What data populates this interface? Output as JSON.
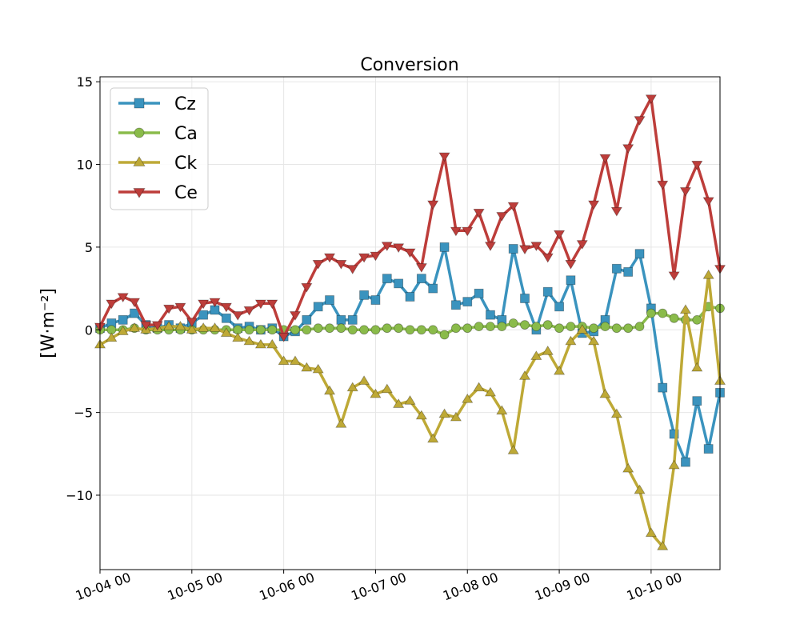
{
  "chart_data": {
    "type": "line",
    "title": "Conversion",
    "xlabel": "",
    "ylabel": "[W·m⁻²]",
    "xlim": [
      "2024-10-04 00:00",
      "2024-10-10 18:00"
    ],
    "ylim": [
      -14.5,
      15.3
    ],
    "x_ticks": [
      "10-04 00",
      "10-05 00",
      "10-06 00",
      "10-07 00",
      "10-08 00",
      "10-09 00",
      "10-10 00"
    ],
    "y_ticks": [
      -10,
      -5,
      0,
      5,
      10,
      15
    ],
    "y_tick_labels": [
      "−10",
      "−5",
      "0",
      "5",
      "10",
      "15"
    ],
    "grid": true,
    "legend_position": "top-left",
    "x_step_hours": 3,
    "x_start": "2024-10-04 00:00",
    "series": [
      {
        "name": "Cz",
        "color": "#3a93be",
        "marker": "square",
        "values": [
          0.1,
          0.4,
          0.6,
          1.0,
          0.3,
          0.1,
          0.3,
          0.1,
          0.4,
          0.9,
          1.2,
          0.7,
          0.1,
          0.2,
          0.0,
          0.1,
          -0.4,
          -0.1,
          0.6,
          1.4,
          1.8,
          0.6,
          0.6,
          2.1,
          1.8,
          3.1,
          2.8,
          2.0,
          3.1,
          2.5,
          5.0,
          1.5,
          1.7,
          2.2,
          0.9,
          0.6,
          4.9,
          1.9,
          0.0,
          2.3,
          1.4,
          3.0,
          -0.2,
          -0.1,
          0.6,
          3.7,
          3.5,
          4.6,
          1.3,
          -3.5,
          -6.3,
          -8.0,
          -4.3,
          -7.2,
          -3.8
        ]
      },
      {
        "name": "Ca",
        "color": "#8abb4a",
        "marker": "circle",
        "values": [
          0.0,
          0.0,
          0.0,
          0.1,
          0.0,
          0.0,
          0.0,
          0.0,
          0.0,
          0.0,
          0.0,
          0.0,
          0.0,
          0.0,
          0.0,
          0.0,
          0.0,
          0.0,
          0.0,
          0.1,
          0.1,
          0.1,
          0.0,
          0.0,
          0.0,
          0.1,
          0.1,
          0.0,
          0.0,
          0.0,
          -0.3,
          0.1,
          0.1,
          0.2,
          0.2,
          0.2,
          0.4,
          0.3,
          0.2,
          0.3,
          0.1,
          0.2,
          0.2,
          0.1,
          0.2,
          0.1,
          0.1,
          0.2,
          1.0,
          1.0,
          0.7,
          0.6,
          0.6,
          1.4,
          1.3
        ]
      },
      {
        "name": "Ck",
        "color": "#bea936",
        "marker": "triangle-up",
        "values": [
          -0.9,
          -0.5,
          -0.1,
          0.1,
          0.0,
          0.1,
          0.2,
          0.2,
          0.0,
          0.1,
          0.1,
          -0.2,
          -0.5,
          -0.7,
          -0.9,
          -0.9,
          -1.9,
          -1.9,
          -2.3,
          -2.4,
          -3.7,
          -5.7,
          -3.5,
          -3.1,
          -3.9,
          -3.6,
          -4.5,
          -4.3,
          -5.2,
          -6.6,
          -5.1,
          -5.3,
          -4.2,
          -3.5,
          -3.8,
          -4.9,
          -7.3,
          -2.8,
          -1.6,
          -1.3,
          -2.5,
          -0.7,
          0.0,
          -0.7,
          -3.9,
          -5.1,
          -8.4,
          -9.7,
          -12.3,
          -13.1,
          -8.2,
          1.2,
          -2.3,
          3.3,
          -3.1
        ]
      },
      {
        "name": "Ce",
        "color": "#bd3d3a",
        "marker": "triangle-down",
        "values": [
          0.2,
          1.6,
          2.0,
          1.7,
          0.3,
          0.3,
          1.3,
          1.4,
          0.5,
          1.6,
          1.7,
          1.4,
          0.9,
          1.2,
          1.6,
          1.6,
          -0.4,
          0.9,
          2.6,
          4.0,
          4.4,
          4.0,
          3.7,
          4.4,
          4.5,
          5.1,
          5.0,
          4.7,
          3.8,
          7.6,
          10.5,
          6.0,
          6.0,
          7.1,
          5.1,
          6.9,
          7.5,
          4.9,
          5.1,
          4.4,
          5.8,
          4.0,
          5.2,
          7.6,
          10.4,
          7.2,
          11.0,
          12.7,
          14.0,
          8.8,
          3.3,
          8.4,
          10.0,
          7.8,
          3.7
        ]
      }
    ]
  }
}
